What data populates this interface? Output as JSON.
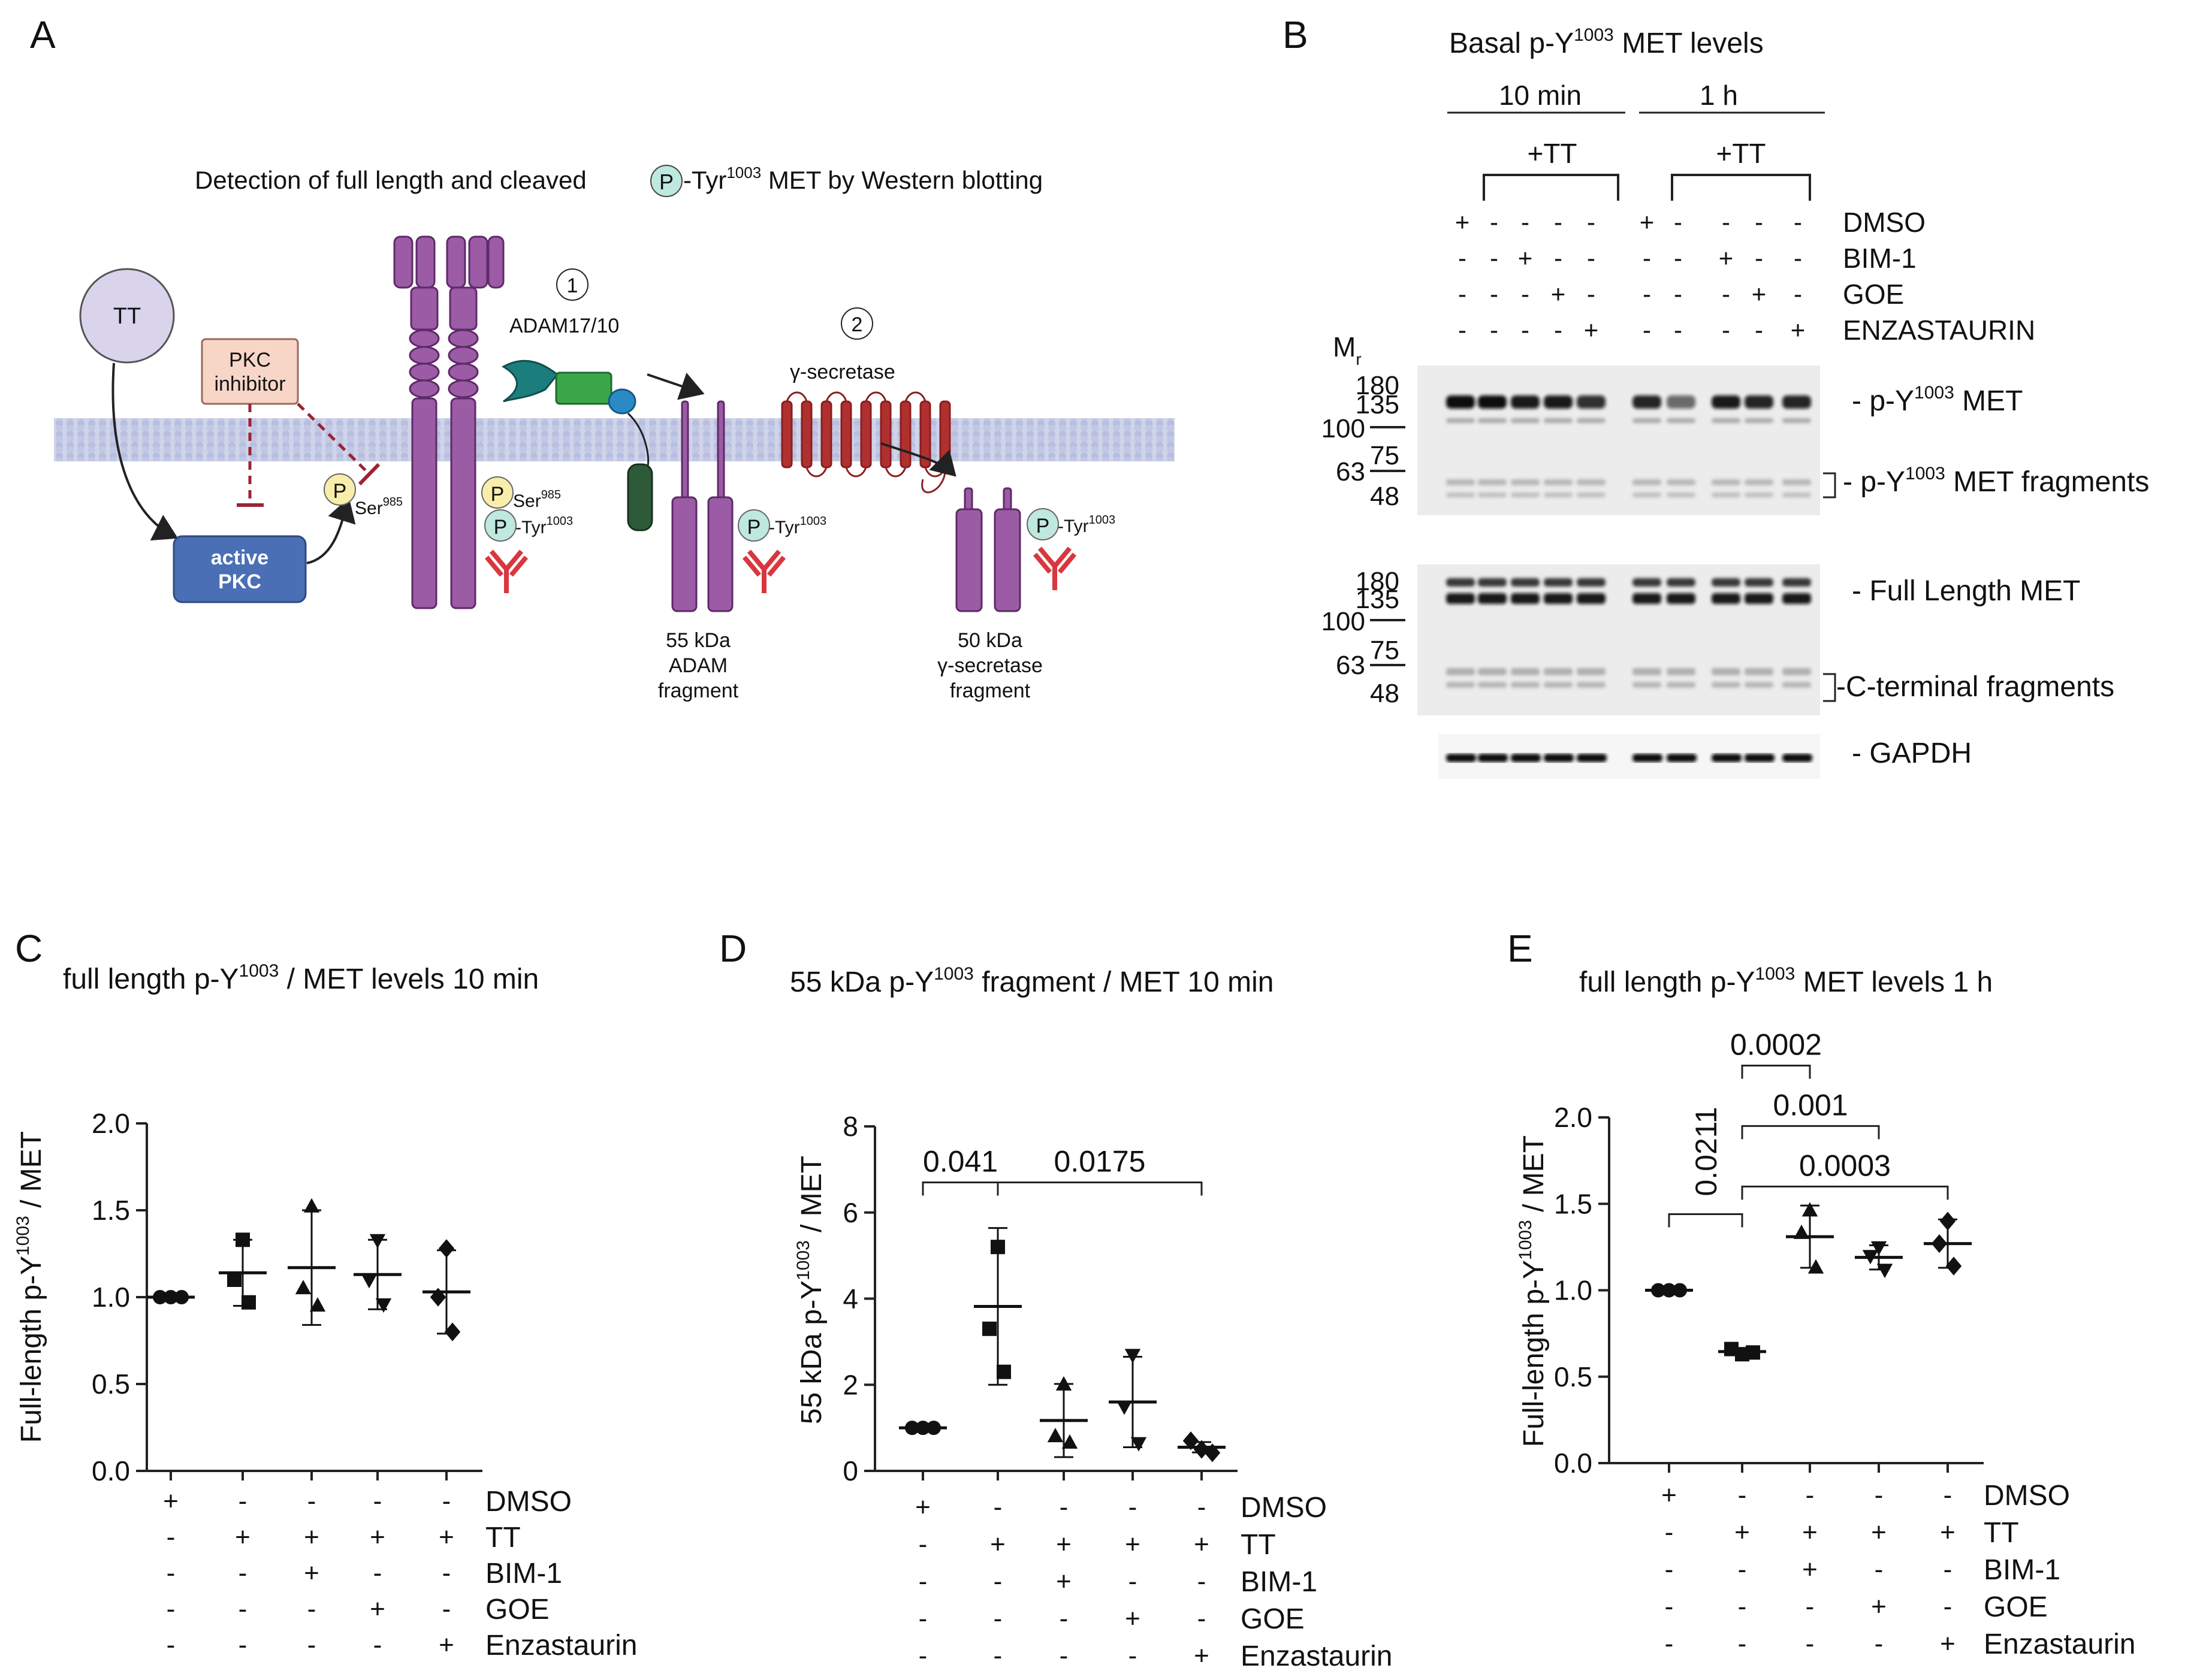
{
  "panels": {
    "A": {
      "letter": "A",
      "title": "Detection of full length and cleaved ",
      "title_p": "P",
      "title_tail": "-Tyr",
      "title_sup": "1003",
      "title_end": " MET by Western blotting",
      "tt": "TT",
      "pkc_inhibitor": [
        "PKC",
        "inhibitor"
      ],
      "active_pkc": [
        "active",
        "PKC"
      ],
      "step1": "1",
      "step1_label": "ADAM17/10",
      "step2": "2",
      "step2_label": "γ-secretase",
      "p": "P",
      "ser": "Ser",
      "ser_sup": "985",
      "tyr": "-Tyr",
      "tyr_sup": "1003",
      "fragment1": [
        "55 kDa",
        "ADAM",
        "fragment"
      ],
      "fragment2": [
        "50 kDa",
        "γ-secretase",
        "fragment"
      ]
    },
    "B": {
      "letter": "B",
      "title": "Basal p-Y",
      "title_sup": "1003",
      "title_tail": " MET levels",
      "time1": "10 min",
      "time2": "1 h",
      "tt": "+TT",
      "treatments": [
        "DMSO",
        "BIM-1",
        "GOE",
        "ENZASTAURIN"
      ],
      "signs_group": [
        [
          "+",
          "-",
          "-",
          "-",
          "-"
        ],
        [
          "-",
          "-",
          "+",
          "-",
          "-"
        ],
        [
          "-",
          "-",
          "-",
          "+",
          "-"
        ],
        [
          "-",
          "-",
          "-",
          "-",
          "+"
        ]
      ],
      "mr": "M",
      "mr_sub": "r",
      "markers_top": [
        "180",
        "135",
        "100",
        "75",
        "63",
        "48"
      ],
      "markers_mid": [
        "180",
        "135",
        "100",
        "75",
        "63",
        "48"
      ],
      "band_labels": {
        "pY": "- p-Y",
        "pY_sup": "1003",
        "pY_tail": " MET",
        "pY_frag": "- p-Y",
        "pY_frag_sup": "1003",
        "pY_frag_tail": " MET fragments",
        "full": "- Full Length MET",
        "cterm": "-C-terminal fragments",
        "gapdh": "- GAPDH"
      }
    },
    "C": {
      "letter": "C",
      "title": "full length p-Y",
      "title_sup": "1003",
      "title_tail": " / MET levels 10 min",
      "ylabel": "Full-length p-Y",
      "ylabel_sup": "1003",
      "ylabel_tail": " / MET"
    },
    "D": {
      "letter": "D",
      "title": "55 kDa p-Y",
      "title_sup": "1003",
      "title_tail": " fragment / MET  10 min",
      "ylabel": "55 kDa p-Y",
      "ylabel_sup": "1003",
      "ylabel_tail": " / MET"
    },
    "E": {
      "letter": "E",
      "title": "full length p-Y",
      "title_sup": "1003",
      "title_tail": " MET levels 1 h",
      "ylabel": "Full-length p-Y",
      "ylabel_sup": "1003",
      "ylabel_tail": " / MET"
    }
  },
  "conditions": {
    "rows": [
      "DMSO",
      "TT",
      "BIM-1",
      "GOE",
      "Enzastaurin"
    ],
    "signs": [
      [
        "+",
        "-",
        "-",
        "-",
        "-"
      ],
      [
        "-",
        "+",
        "+",
        "+",
        "+"
      ],
      [
        "-",
        "-",
        "+",
        "-",
        "-"
      ],
      [
        "-",
        "-",
        "-",
        "+",
        "-"
      ],
      [
        "-",
        "-",
        "-",
        "-",
        "+"
      ]
    ]
  },
  "chart_data": [
    {
      "panel": "C",
      "type": "scatter",
      "title": "full length p-Y1003 / MET levels 10 min",
      "ylabel": "Full-length p-Y1003 / MET",
      "ylim": [
        0,
        2.0
      ],
      "yticks": [
        "0.0",
        "0.5",
        "1.0",
        "1.5",
        "2.0"
      ],
      "markers": [
        "circle",
        "square",
        "triangle-up",
        "triangle-down",
        "diamond"
      ],
      "groups": [
        {
          "points": [
            1.0,
            1.0,
            1.0
          ],
          "mean": 1.0,
          "sd": 0.0
        },
        {
          "points": [
            1.33,
            1.1,
            0.97
          ],
          "mean": 1.14,
          "sd": 0.19
        },
        {
          "points": [
            1.52,
            1.05,
            0.95
          ],
          "mean": 1.17,
          "sd": 0.33
        },
        {
          "points": [
            1.33,
            1.1,
            0.96
          ],
          "mean": 1.13,
          "sd": 0.2
        },
        {
          "points": [
            1.28,
            1.0,
            0.8
          ],
          "mean": 1.03,
          "sd": 0.24
        }
      ],
      "brackets": []
    },
    {
      "panel": "D",
      "type": "scatter",
      "title": "55 kDa p-Y1003 fragment / MET 10 min",
      "ylabel": "55 kDa p-Y1003 / MET",
      "ylim": [
        0,
        8
      ],
      "yticks": [
        "0",
        "2",
        "4",
        "6",
        "8"
      ],
      "markers": [
        "circle",
        "square",
        "triangle-up",
        "triangle-down",
        "diamond"
      ],
      "groups": [
        {
          "points": [
            1.0,
            1.0,
            1.0
          ],
          "mean": 1.0,
          "sd": 0.0
        },
        {
          "points": [
            5.2,
            3.3,
            2.3
          ],
          "mean": 3.82,
          "sd": 1.82
        },
        {
          "points": [
            2.0,
            0.8,
            0.65
          ],
          "mean": 1.17,
          "sd": 0.85
        },
        {
          "points": [
            2.7,
            1.5,
            0.65
          ],
          "mean": 1.6,
          "sd": 1.05
        },
        {
          "points": [
            0.7,
            0.5,
            0.42
          ],
          "mean": 0.55,
          "sd": 0.12
        }
      ],
      "brackets": [
        {
          "from": 0,
          "to": 1,
          "y": 6.7,
          "label": "0.041"
        },
        {
          "from": 1,
          "to": 4,
          "y": 6.7,
          "label": "0.0175"
        }
      ]
    },
    {
      "panel": "E",
      "type": "scatter",
      "title": "full length p-Y1003 MET levels 1 h",
      "ylabel": "Full-length p-Y1003 / MET",
      "ylim": [
        0,
        2.0
      ],
      "yticks": [
        "0.0",
        "0.5",
        "1.0",
        "1.5",
        "2.0"
      ],
      "markers": [
        "circle",
        "square",
        "triangle-up",
        "triangle-down",
        "diamond"
      ],
      "groups": [
        {
          "points": [
            1.0,
            1.0,
            1.0
          ],
          "mean": 1.0,
          "sd": 0.0
        },
        {
          "points": [
            0.66,
            0.63,
            0.64
          ],
          "mean": 0.645,
          "sd": 0.02
        },
        {
          "points": [
            1.46,
            1.33,
            1.13
          ],
          "mean": 1.31,
          "sd": 0.18
        },
        {
          "points": [
            1.25,
            1.2,
            1.12
          ],
          "mean": 1.19,
          "sd": 0.07
        },
        {
          "points": [
            1.4,
            1.27,
            1.14
          ],
          "mean": 1.27,
          "sd": 0.14
        }
      ],
      "brackets": [
        {
          "from": 0,
          "to": 1,
          "y": 1.44,
          "label": "0.0211",
          "rotated": true
        },
        {
          "from": 1,
          "to": 4,
          "y": 1.6,
          "label": "0.0003"
        },
        {
          "from": 1,
          "to": 3,
          "y": 1.95,
          "label": "0.001"
        },
        {
          "from": 1,
          "to": 2,
          "y": 2.3,
          "label": "0.0002"
        }
      ]
    }
  ]
}
